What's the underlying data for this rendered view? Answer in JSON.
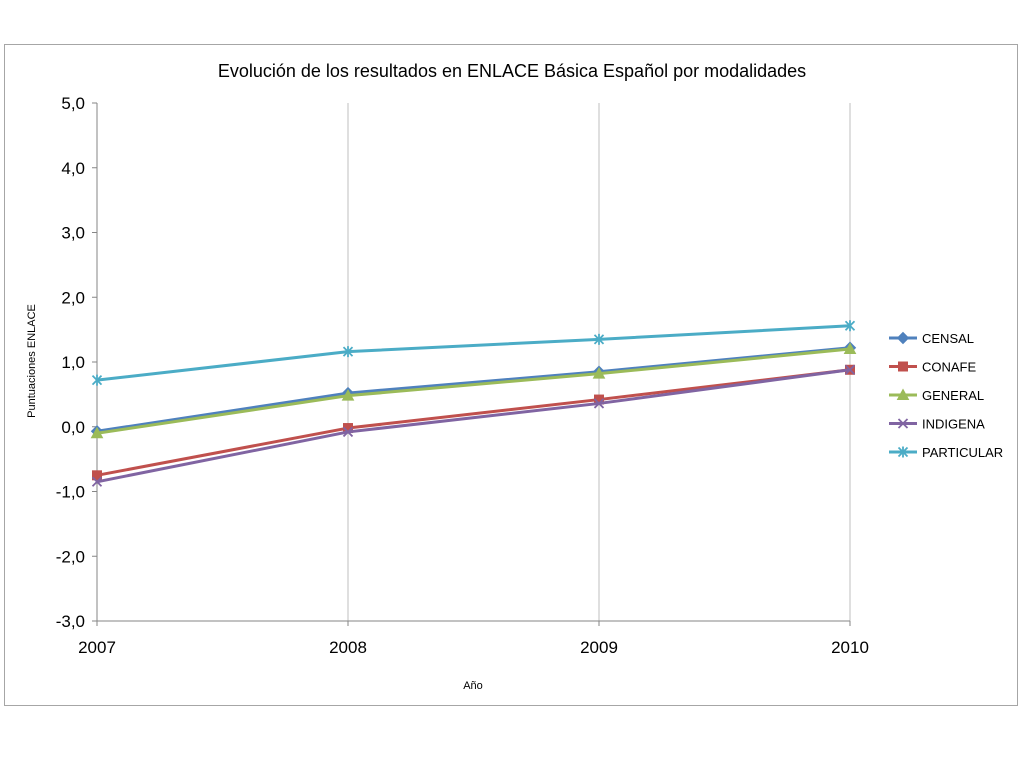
{
  "chart_data": {
    "type": "line",
    "title": "Evolución de los resultados  en ENLACE Básica Español  por modalidades",
    "xlabel": "Año",
    "ylabel": "Puntuaciones ENLACE",
    "x": [
      "2007",
      "2008",
      "2009",
      "2010"
    ],
    "ylim": [
      -3.0,
      5.0
    ],
    "yticks": [
      "5,0",
      "4,0",
      "3,0",
      "2,0",
      "1,0",
      "0,0",
      "-1,0",
      "-2,0",
      "-3,0"
    ],
    "ytick_values": [
      5,
      4,
      3,
      2,
      1,
      0,
      -1,
      -2,
      -3
    ],
    "grid": "vertical",
    "legend_position": "right",
    "series": [
      {
        "name": "CENSAL",
        "values": [
          -0.07,
          0.52,
          0.85,
          1.22
        ],
        "color": "#4F81BD",
        "marker": "diamond"
      },
      {
        "name": "CONAFE",
        "values": [
          -0.75,
          -0.02,
          0.42,
          0.88
        ],
        "color": "#C0504D",
        "marker": "square"
      },
      {
        "name": "GENERAL",
        "values": [
          -0.1,
          0.48,
          0.82,
          1.2
        ],
        "color": "#9BBB59",
        "marker": "triangle"
      },
      {
        "name": "INDIGENA",
        "values": [
          -0.85,
          -0.08,
          0.36,
          0.88
        ],
        "color": "#8064A2",
        "marker": "x"
      },
      {
        "name": "PARTICULAR",
        "values": [
          0.72,
          1.16,
          1.35,
          1.56
        ],
        "color": "#4BACC6",
        "marker": "star"
      }
    ]
  }
}
